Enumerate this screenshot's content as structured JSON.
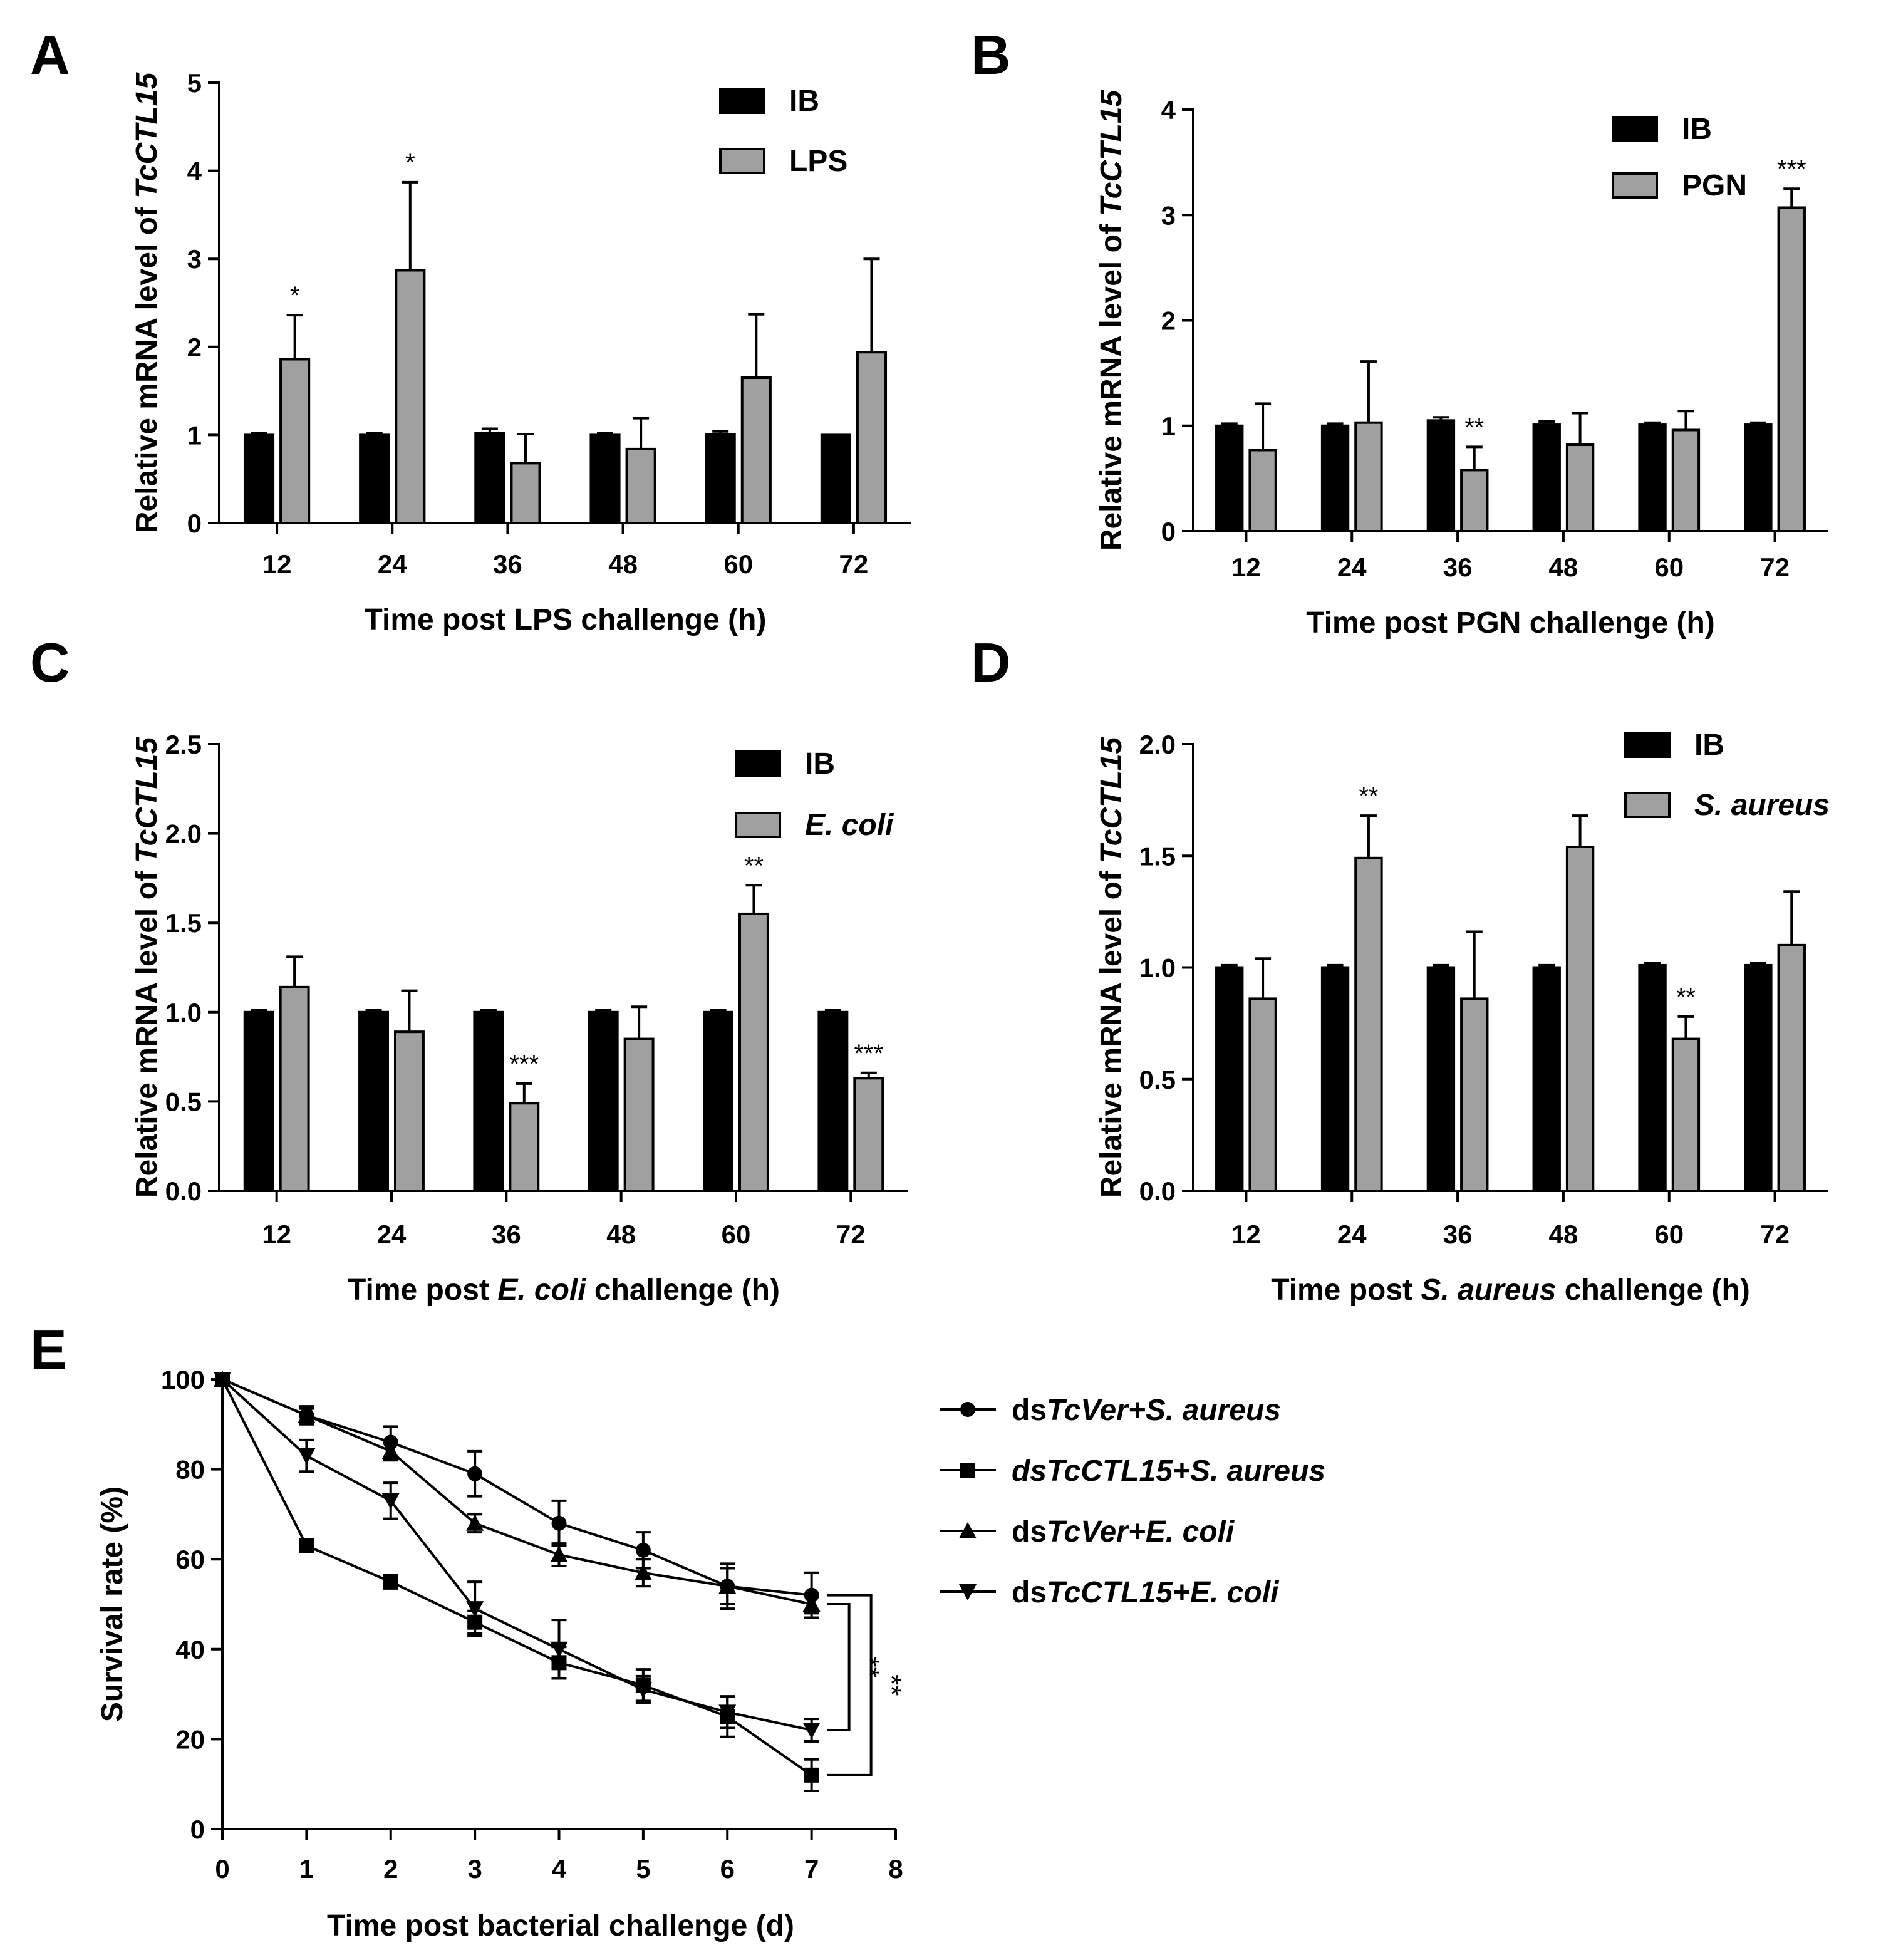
{
  "colors": {
    "ib": "#000000",
    "treatment": "#a0a0a0",
    "axis": "#000000",
    "background": "#ffffff"
  },
  "chart_data": [
    {
      "panel": "A",
      "type": "bar",
      "title": "",
      "categories": [
        "12",
        "24",
        "36",
        "48",
        "60",
        "72"
      ],
      "ylabel": {
        "prefix": "Relative mRNA level of ",
        "gene": "TcCTL15"
      },
      "xlabel": {
        "prefix": "Time post ",
        "agent": "LPS",
        "agent_italic": false,
        "suffix": " challenge (h)"
      },
      "ylim": [
        0,
        5
      ],
      "yticks": [
        "0",
        "1",
        "2",
        "3",
        "4",
        "5"
      ],
      "series": [
        {
          "name": "IB",
          "italic": false,
          "color": "#000000",
          "values": [
            1.0,
            1.0,
            1.02,
            1.0,
            1.01,
            1.0
          ],
          "errors": [
            0.02,
            0.02,
            0.05,
            0.02,
            0.03,
            0.0
          ]
        },
        {
          "name": "LPS",
          "italic": false,
          "color": "#a0a0a0",
          "values": [
            1.86,
            2.87,
            0.68,
            0.84,
            1.65,
            1.94
          ],
          "errors": [
            0.5,
            1.0,
            0.33,
            0.35,
            0.72,
            1.06
          ]
        }
      ],
      "significance": [
        "*",
        "*",
        "",
        "",
        "",
        ""
      ],
      "legend_position": "top-right"
    },
    {
      "panel": "B",
      "type": "bar",
      "title": "",
      "categories": [
        "12",
        "24",
        "36",
        "48",
        "60",
        "72"
      ],
      "ylabel": {
        "prefix": "Relative mRNA level of ",
        "gene": "TcCTL15"
      },
      "xlabel": {
        "prefix": "Time post ",
        "agent": "PGN",
        "agent_italic": false,
        "suffix": " challenge (h)"
      },
      "ylim": [
        0,
        4
      ],
      "yticks": [
        "0",
        "1",
        "2",
        "3",
        "4"
      ],
      "series": [
        {
          "name": "IB",
          "italic": false,
          "color": "#000000",
          "values": [
            1.0,
            1.0,
            1.05,
            1.01,
            1.01,
            1.01
          ],
          "errors": [
            0.02,
            0.02,
            0.03,
            0.03,
            0.02,
            0.02
          ]
        },
        {
          "name": "PGN",
          "italic": false,
          "color": "#a0a0a0",
          "values": [
            0.77,
            1.03,
            0.58,
            0.82,
            0.96,
            3.07
          ],
          "errors": [
            0.44,
            0.58,
            0.22,
            0.3,
            0.18,
            0.18
          ]
        }
      ],
      "significance": [
        "",
        "",
        "**",
        "",
        "",
        "***"
      ],
      "legend_position": "top-right"
    },
    {
      "panel": "C",
      "type": "bar",
      "title": "",
      "categories": [
        "12",
        "24",
        "36",
        "48",
        "60",
        "72"
      ],
      "ylabel": {
        "prefix": "Relative mRNA level of ",
        "gene": "TcCTL15"
      },
      "xlabel": {
        "prefix": "Time post ",
        "agent": "E. coli",
        "agent_italic": true,
        "suffix": " challenge (h)"
      },
      "ylim": [
        0,
        2.5
      ],
      "yticks": [
        "0.0",
        "0.5",
        "1.0",
        "1.5",
        "2.0",
        "2.5"
      ],
      "series": [
        {
          "name": "IB",
          "italic": false,
          "color": "#000000",
          "values": [
            1.0,
            1.0,
            1.0,
            1.0,
            1.0,
            1.0
          ],
          "errors": [
            0.01,
            0.01,
            0.01,
            0.01,
            0.01,
            0.01
          ]
        },
        {
          "name": "E. coli",
          "italic": true,
          "color": "#a0a0a0",
          "values": [
            1.14,
            0.89,
            0.49,
            0.85,
            1.55,
            0.63
          ],
          "errors": [
            0.17,
            0.23,
            0.11,
            0.18,
            0.16,
            0.03
          ]
        }
      ],
      "significance": [
        "",
        "",
        "***",
        "",
        "**",
        "***"
      ],
      "legend_position": "top-right"
    },
    {
      "panel": "D",
      "type": "bar",
      "title": "",
      "categories": [
        "12",
        "24",
        "36",
        "48",
        "60",
        "72"
      ],
      "ylabel": {
        "prefix": "Relative mRNA level of ",
        "gene": "TcCTL15"
      },
      "xlabel": {
        "prefix": "Time post ",
        "agent": "S. aureus",
        "agent_italic": true,
        "suffix": " challenge (h)"
      },
      "ylim": [
        0,
        2.0
      ],
      "yticks": [
        "0.0",
        "0.5",
        "1.0",
        "1.5",
        "2.0"
      ],
      "series": [
        {
          "name": "IB",
          "italic": false,
          "color": "#000000",
          "values": [
            1.0,
            1.0,
            1.0,
            1.0,
            1.01,
            1.01
          ],
          "errors": [
            0.01,
            0.01,
            0.01,
            0.01,
            0.01,
            0.01
          ]
        },
        {
          "name": "S. aureus",
          "italic": true,
          "color": "#a0a0a0",
          "values": [
            0.86,
            1.49,
            0.86,
            1.54,
            0.68,
            1.1
          ],
          "errors": [
            0.18,
            0.19,
            0.3,
            0.14,
            0.1,
            0.24
          ]
        }
      ],
      "significance": [
        "",
        "**",
        "",
        "",
        "**",
        ""
      ],
      "legend_position": "top-right"
    },
    {
      "panel": "E",
      "type": "line",
      "title": "",
      "x": [
        0,
        1,
        2,
        3,
        4,
        5,
        6,
        7
      ],
      "xlim": [
        0,
        8
      ],
      "xticks": [
        "0",
        "1",
        "2",
        "3",
        "4",
        "5",
        "6",
        "7",
        "8"
      ],
      "ylim": [
        0,
        100
      ],
      "yticks": [
        "0",
        "20",
        "40",
        "60",
        "80",
        "100"
      ],
      "ylabel": "Survival rate (%)",
      "xlabel": "Time post bacterial challenge (d)",
      "series": [
        {
          "marker": "circle",
          "label_parts": [
            {
              "t": "ds",
              "i": false
            },
            {
              "t": "TcVer",
              "i": true
            },
            {
              "t": "+S. aureus",
              "i": true
            }
          ],
          "values": [
            100,
            92,
            86,
            79,
            68,
            62,
            54,
            52
          ],
          "errors": [
            0,
            1.5,
            3.5,
            5,
            5,
            4,
            5,
            5
          ]
        },
        {
          "marker": "square",
          "label_parts": [
            {
              "t": "dsTcCTL15",
              "i": true
            },
            {
              "t": "+S. aureus",
              "i": true
            }
          ],
          "values": [
            100,
            63,
            55,
            46,
            37,
            32,
            25,
            12
          ],
          "errors": [
            0,
            1,
            1.5,
            2.5,
            3.5,
            3.5,
            4.5,
            3.5
          ]
        },
        {
          "marker": "triangle-up",
          "label_parts": [
            {
              "t": "ds",
              "i": false
            },
            {
              "t": "TcVer",
              "i": true
            },
            {
              "t": "+E. coli",
              "i": true
            }
          ],
          "values": [
            100,
            92,
            84,
            68,
            61,
            57,
            54,
            50
          ],
          "errors": [
            0,
            2,
            2,
            2,
            2.5,
            3,
            4,
            2
          ]
        },
        {
          "marker": "triangle-down",
          "label_parts": [
            {
              "t": "ds",
              "i": false
            },
            {
              "t": "TcCTL15",
              "i": true
            },
            {
              "t": "+E. coli",
              "i": true
            }
          ],
          "values": [
            100,
            83,
            73,
            49,
            40,
            31,
            26,
            22
          ],
          "errors": [
            0,
            3.5,
            4,
            6,
            6.5,
            3,
            3.5,
            2.5
          ]
        }
      ],
      "brackets": [
        {
          "from_series": 2,
          "to_series": 3,
          "label": "**"
        },
        {
          "from_series": 0,
          "to_series": 1,
          "label": "**"
        }
      ],
      "legend_position": "right"
    }
  ],
  "panel_letters": [
    "A",
    "B",
    "C",
    "D",
    "E"
  ]
}
